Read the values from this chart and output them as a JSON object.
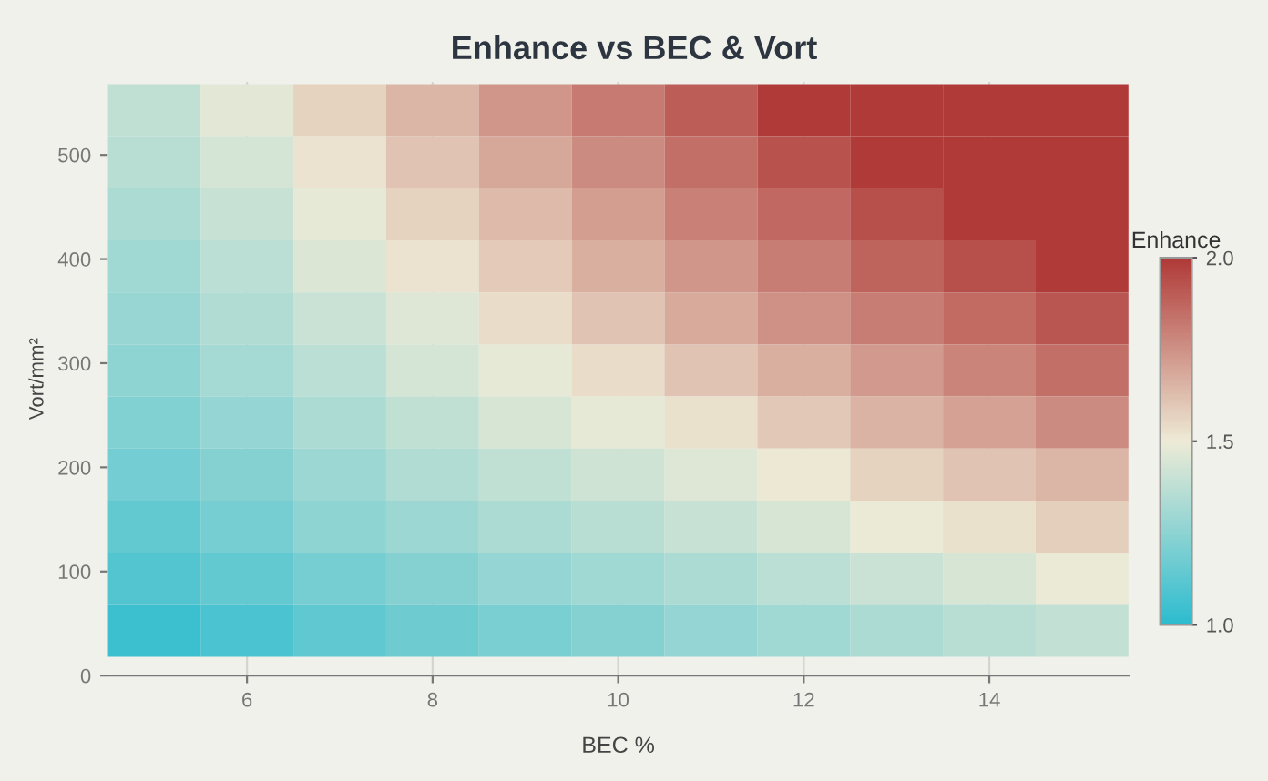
{
  "chart_data": {
    "type": "heatmap",
    "title": "Enhance vs BEC & Vort",
    "xlabel": "BEC %",
    "ylabel": "Vort/mm²",
    "clabel": "Enhance",
    "x": [
      5,
      6,
      7,
      8,
      9,
      10,
      11,
      12,
      13,
      14,
      15
    ],
    "y": [
      543,
      493,
      443,
      393,
      343,
      293,
      243,
      193,
      143,
      93,
      43
    ],
    "cells": [
      [
        1.38,
        1.47,
        1.57,
        1.65,
        1.74,
        1.82,
        1.9,
        2.0,
        2.0,
        2.0,
        2.0
      ],
      [
        1.36,
        1.43,
        1.52,
        1.61,
        1.69,
        1.77,
        1.85,
        1.93,
        2.0,
        2.0,
        2.0
      ],
      [
        1.33,
        1.4,
        1.48,
        1.57,
        1.64,
        1.72,
        1.8,
        1.87,
        1.94,
        2.0,
        2.0
      ],
      [
        1.3,
        1.37,
        1.45,
        1.52,
        1.59,
        1.67,
        1.74,
        1.81,
        1.88,
        1.94,
        2.0
      ],
      [
        1.28,
        1.34,
        1.41,
        1.46,
        1.54,
        1.61,
        1.68,
        1.75,
        1.81,
        1.86,
        1.92
      ],
      [
        1.25,
        1.31,
        1.37,
        1.43,
        1.48,
        1.54,
        1.61,
        1.67,
        1.73,
        1.79,
        1.85
      ],
      [
        1.22,
        1.27,
        1.33,
        1.38,
        1.44,
        1.48,
        1.53,
        1.6,
        1.66,
        1.71,
        1.77
      ],
      [
        1.18,
        1.23,
        1.29,
        1.34,
        1.38,
        1.42,
        1.46,
        1.51,
        1.57,
        1.61,
        1.65
      ],
      [
        1.14,
        1.19,
        1.25,
        1.29,
        1.33,
        1.36,
        1.4,
        1.44,
        1.49,
        1.53,
        1.58
      ],
      [
        1.1,
        1.14,
        1.19,
        1.23,
        1.27,
        1.3,
        1.33,
        1.37,
        1.41,
        1.44,
        1.49
      ],
      [
        1.04,
        1.08,
        1.13,
        1.17,
        1.2,
        1.23,
        1.27,
        1.3,
        1.33,
        1.36,
        1.39
      ]
    ],
    "colors": [
      "#2dbccf",
      "#eeebd6",
      "#b03a38"
    ],
    "clim": [
      1.0,
      2.0
    ],
    "cticks": [
      {
        "value": 1.0,
        "label": "1.0"
      },
      {
        "value": 1.5,
        "label": "1.5"
      },
      {
        "value": 2.0,
        "label": "2.0"
      }
    ],
    "xlim": [
      4.5,
      15.5
    ],
    "xticks": [
      6,
      8,
      10,
      12,
      14
    ],
    "ylim": [
      0,
      570
    ],
    "yticks": [
      0,
      100,
      200,
      300,
      400,
      500
    ],
    "grid": "x"
  }
}
